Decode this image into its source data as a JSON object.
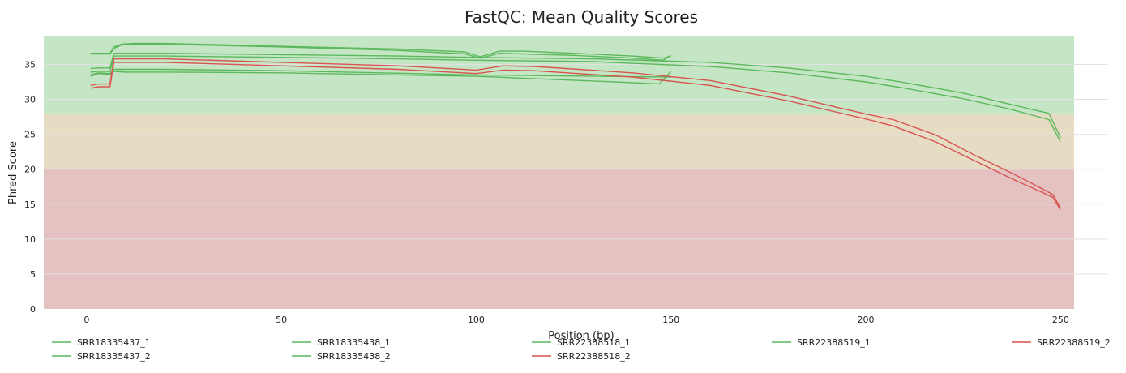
{
  "chart_data": {
    "type": "line",
    "title": "FastQC: Mean Quality Scores",
    "xlabel": "Position (bp)",
    "ylabel": "Phred Score",
    "xlim": [
      -11,
      262
    ],
    "ylim": [
      0,
      39
    ],
    "x_ticks": [
      0,
      50,
      100,
      150,
      200,
      250
    ],
    "y_ticks": [
      0,
      5,
      10,
      15,
      20,
      25,
      30,
      35
    ],
    "grid": "horizontal",
    "legend_position": "bottom",
    "bands": [
      {
        "from": 0,
        "to": 20,
        "color": "#e4c2c2"
      },
      {
        "from": 20,
        "to": 28,
        "color": "#e6dcc4"
      },
      {
        "from": 28,
        "to": 39,
        "color": "#c4e6c4"
      }
    ],
    "series": [
      {
        "name": "SRR18335437_1",
        "color": "#5cb85c",
        "x": [
          1,
          3,
          6,
          7,
          9,
          12,
          20,
          50,
          80,
          97,
          101,
          106,
          112,
          125,
          140,
          148,
          150
        ],
        "y": [
          36.5,
          36.5,
          36.5,
          37.3,
          37.8,
          37.9,
          37.9,
          37.5,
          37.0,
          36.5,
          35.9,
          36.6,
          36.5,
          36.3,
          35.9,
          35.6,
          36.3
        ]
      },
      {
        "name": "SRR18335437_2",
        "color": "#5cb85c",
        "x": [
          1,
          3,
          6,
          7,
          10,
          20,
          50,
          100,
          140,
          147,
          150
        ],
        "y": [
          33.3,
          33.7,
          33.6,
          34.0,
          33.9,
          33.9,
          33.8,
          33.3,
          32.4,
          32.2,
          34.0
        ]
      },
      {
        "name": "SRR18335438_1",
        "color": "#5cb85c",
        "x": [
          1,
          3,
          6,
          7,
          9,
          12,
          20,
          50,
          80,
          97,
          101,
          106,
          112,
          125,
          140,
          148,
          150
        ],
        "y": [
          36.6,
          36.6,
          36.6,
          37.5,
          37.9,
          38.0,
          38.0,
          37.6,
          37.2,
          36.8,
          36.1,
          36.9,
          36.9,
          36.6,
          36.2,
          35.9,
          36.2
        ]
      },
      {
        "name": "SRR18335438_2",
        "color": "#5cb85c",
        "x": [
          1,
          3,
          6,
          7,
          10,
          20,
          50,
          100,
          150
        ],
        "y": [
          33.5,
          33.8,
          33.7,
          34.3,
          34.3,
          34.3,
          34.1,
          33.5,
          33.2
        ]
      },
      {
        "name": "SRR22388518_1",
        "color": "#5cb85c",
        "x": [
          1,
          3,
          6,
          7,
          10,
          20,
          50,
          80,
          100,
          130,
          160,
          180,
          200,
          210,
          225,
          237,
          247,
          250
        ],
        "y": [
          34.4,
          34.5,
          34.5,
          36.6,
          36.6,
          36.6,
          36.4,
          36.2,
          36.0,
          35.8,
          35.3,
          34.5,
          33.3,
          32.4,
          30.9,
          29.3,
          28.0,
          24.5
        ]
      },
      {
        "name": "SRR22388518_2",
        "color": "#d9534f",
        "x": [
          1,
          3,
          6,
          7,
          10,
          20,
          50,
          80,
          100,
          107,
          115,
          140,
          160,
          180,
          200,
          207,
          218,
          228,
          238,
          248,
          250
        ],
        "y": [
          32.0,
          32.2,
          32.2,
          35.8,
          35.8,
          35.8,
          35.3,
          34.8,
          34.2,
          34.8,
          34.7,
          33.8,
          32.7,
          30.5,
          27.9,
          27.1,
          24.9,
          22.0,
          19.3,
          16.4,
          14.4
        ]
      },
      {
        "name": "SRR22388519_1",
        "color": "#5cb85c",
        "x": [
          1,
          3,
          6,
          7,
          10,
          20,
          50,
          80,
          100,
          130,
          160,
          180,
          200,
          210,
          225,
          237,
          247,
          250
        ],
        "y": [
          33.9,
          34.0,
          34.0,
          36.2,
          36.2,
          36.2,
          36.0,
          35.8,
          35.6,
          35.4,
          34.7,
          33.8,
          32.5,
          31.6,
          30.1,
          28.6,
          27.1,
          23.9
        ]
      },
      {
        "name": "SRR22388519_2",
        "color": "#d9534f",
        "x": [
          1,
          3,
          6,
          7,
          10,
          20,
          50,
          80,
          100,
          107,
          115,
          140,
          160,
          180,
          200,
          207,
          218,
          228,
          238,
          248,
          250
        ],
        "y": [
          31.6,
          31.8,
          31.8,
          35.3,
          35.3,
          35.3,
          34.8,
          34.3,
          33.7,
          34.2,
          34.1,
          33.2,
          32.0,
          29.8,
          27.2,
          26.2,
          23.9,
          21.2,
          18.5,
          16.0,
          14.2
        ]
      }
    ]
  }
}
